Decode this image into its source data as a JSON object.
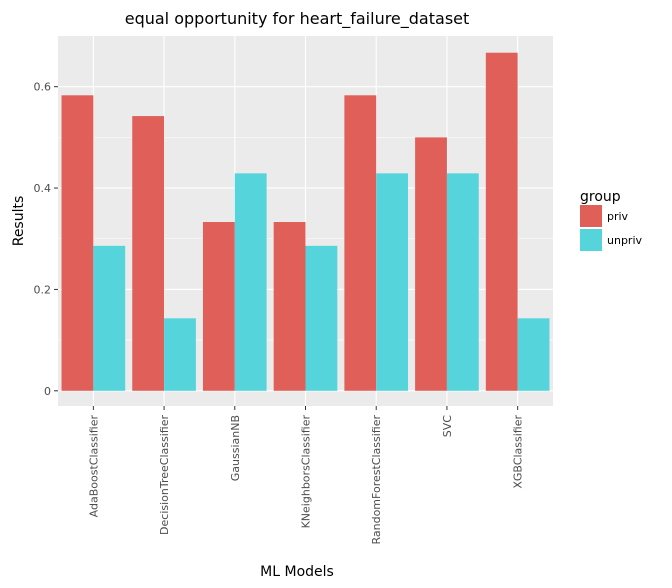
{
  "chart_data": {
    "type": "bar",
    "title": "equal opportunity for heart_failure_dataset",
    "xlabel": "ML Models",
    "ylabel": "Results",
    "categories": [
      "AdaBoostClassifier",
      "DecisionTreeClassifier",
      "GaussianNB",
      "KNeighborsClassifier",
      "RandomForestClassifier",
      "SVC",
      "XGBClassifier"
    ],
    "series": [
      {
        "name": "priv",
        "color": "#e05f58",
        "values": [
          0.583,
          0.542,
          0.333,
          0.333,
          0.583,
          0.5,
          0.667
        ]
      },
      {
        "name": "unpriv",
        "color": "#56d4dc",
        "values": [
          0.286,
          0.143,
          0.429,
          0.286,
          0.429,
          0.429,
          0.143
        ]
      }
    ],
    "ylim": [
      -0.03,
      0.7
    ],
    "yticks": [
      0,
      0.2,
      0.4,
      0.6
    ],
    "ytick_labels": [
      "0",
      "0.2",
      "0.4",
      "0.6"
    ],
    "legend_title": "group",
    "legend_position": "right",
    "grid": true,
    "panel_background": "#ebebeb",
    "grid_color": "#ffffff"
  }
}
